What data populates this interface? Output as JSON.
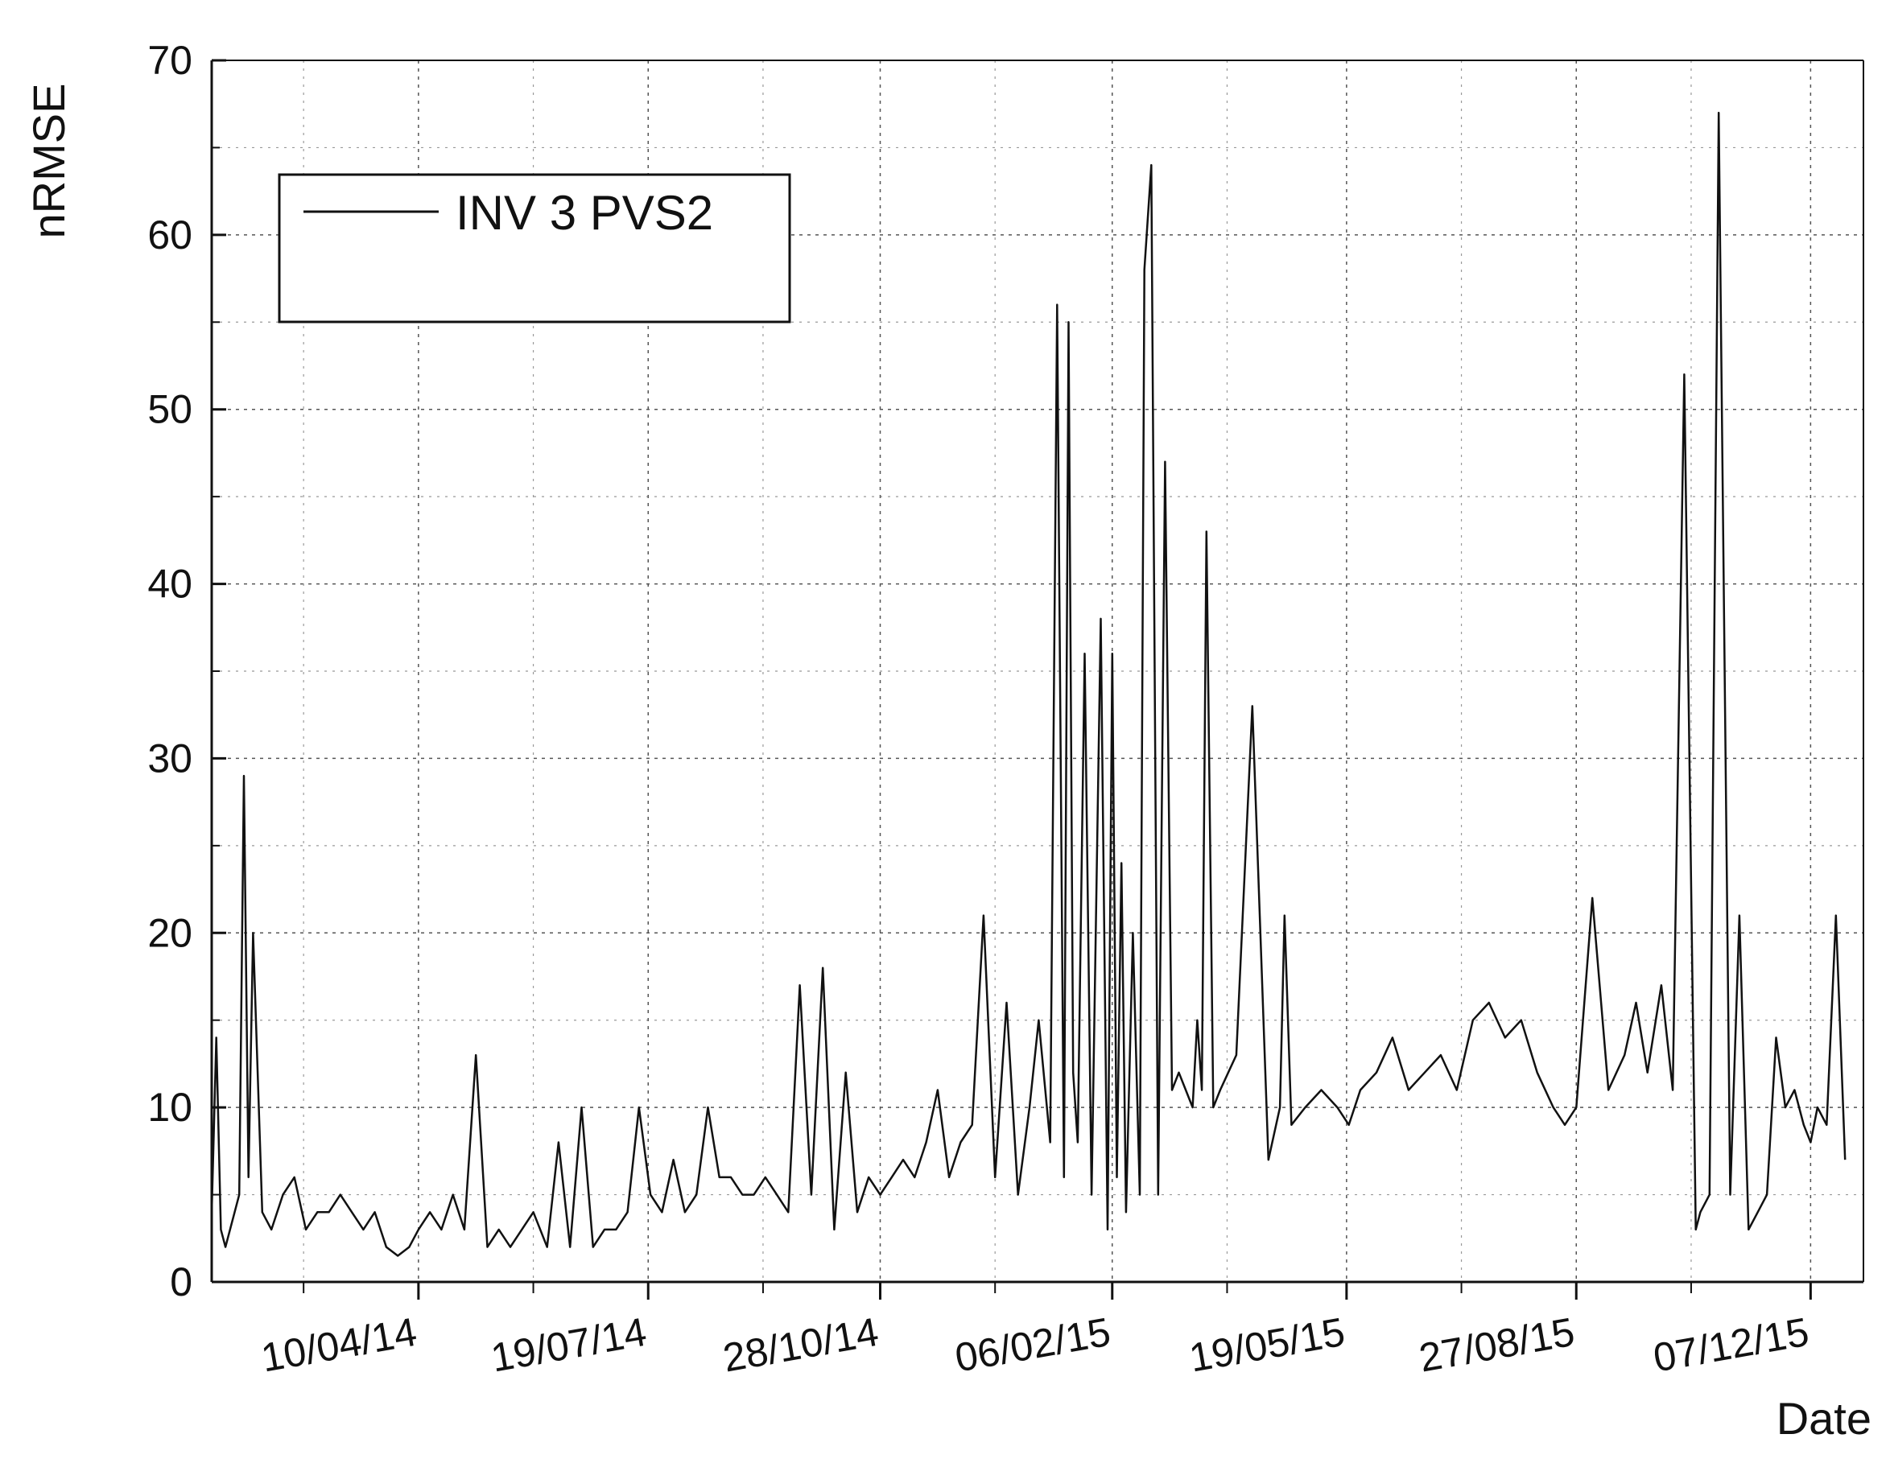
{
  "chart_data": {
    "type": "line",
    "title": "",
    "xlabel": "Date",
    "ylabel": "nRMSE",
    "ylim": [
      0,
      70
    ],
    "yticks": [
      0,
      10,
      20,
      30,
      40,
      50,
      60,
      70
    ],
    "xlim": [
      "2014-01-10",
      "2015-12-30"
    ],
    "xtick_labels": [
      "10/04/14",
      "19/07/14",
      "28/10/14",
      "06/02/15",
      "19/05/15",
      "27/08/15",
      "07/12/15"
    ],
    "xtick_dates": [
      "2014-04-10",
      "2014-07-19",
      "2014-10-28",
      "2015-02-06",
      "2015-05-19",
      "2015-08-27",
      "2015-12-07"
    ],
    "grid": true,
    "legend": "top-left",
    "series": [
      {
        "name": "INV 3 PVS2",
        "color": "#111111",
        "x": [
          "2014-01-10",
          "2014-01-12",
          "2014-01-14",
          "2014-01-16",
          "2014-01-18",
          "2014-01-20",
          "2014-01-22",
          "2014-01-24",
          "2014-01-26",
          "2014-01-28",
          "2014-02-01",
          "2014-02-05",
          "2014-02-10",
          "2014-02-15",
          "2014-02-20",
          "2014-02-25",
          "2014-03-02",
          "2014-03-07",
          "2014-03-12",
          "2014-03-17",
          "2014-03-22",
          "2014-03-27",
          "2014-04-01",
          "2014-04-06",
          "2014-04-10",
          "2014-04-15",
          "2014-04-20",
          "2014-04-25",
          "2014-04-30",
          "2014-05-05",
          "2014-05-10",
          "2014-05-15",
          "2014-05-20",
          "2014-05-25",
          "2014-05-30",
          "2014-06-05",
          "2014-06-10",
          "2014-06-15",
          "2014-06-20",
          "2014-06-25",
          "2014-06-30",
          "2014-07-05",
          "2014-07-10",
          "2014-07-15",
          "2014-07-20",
          "2014-07-25",
          "2014-07-30",
          "2014-08-04",
          "2014-08-09",
          "2014-08-14",
          "2014-08-19",
          "2014-08-24",
          "2014-08-29",
          "2014-09-03",
          "2014-09-08",
          "2014-09-13",
          "2014-09-18",
          "2014-09-23",
          "2014-09-28",
          "2014-10-03",
          "2014-10-08",
          "2014-10-13",
          "2014-10-18",
          "2014-10-23",
          "2014-10-28",
          "2014-11-02",
          "2014-11-07",
          "2014-11-12",
          "2014-11-17",
          "2014-11-22",
          "2014-11-27",
          "2014-12-02",
          "2014-12-07",
          "2014-12-12",
          "2014-12-17",
          "2014-12-22",
          "2014-12-27",
          "2015-01-01",
          "2015-01-05",
          "2015-01-10",
          "2015-01-13",
          "2015-01-16",
          "2015-01-18",
          "2015-01-20",
          "2015-01-22",
          "2015-01-25",
          "2015-01-28",
          "2015-02-01",
          "2015-02-04",
          "2015-02-06",
          "2015-02-08",
          "2015-02-10",
          "2015-02-12",
          "2015-02-15",
          "2015-02-18",
          "2015-02-20",
          "2015-02-23",
          "2015-02-26",
          "2015-03-01",
          "2015-03-04",
          "2015-03-07",
          "2015-03-10",
          "2015-03-13",
          "2015-03-15",
          "2015-03-17",
          "2015-03-19",
          "2015-03-22",
          "2015-03-25",
          "2015-04-01",
          "2015-04-08",
          "2015-04-15",
          "2015-04-20",
          "2015-04-22",
          "2015-04-25",
          "2015-05-01",
          "2015-05-08",
          "2015-05-15",
          "2015-05-20",
          "2015-05-25",
          "2015-06-01",
          "2015-06-08",
          "2015-06-15",
          "2015-06-22",
          "2015-06-29",
          "2015-07-06",
          "2015-07-13",
          "2015-07-20",
          "2015-07-27",
          "2015-08-03",
          "2015-08-10",
          "2015-08-17",
          "2015-08-22",
          "2015-08-27",
          "2015-09-03",
          "2015-09-10",
          "2015-09-17",
          "2015-09-22",
          "2015-09-27",
          "2015-10-03",
          "2015-10-08",
          "2015-10-13",
          "2015-10-18",
          "2015-10-20",
          "2015-10-24",
          "2015-10-28",
          "2015-11-02",
          "2015-11-06",
          "2015-11-10",
          "2015-11-14",
          "2015-11-18",
          "2015-11-22",
          "2015-11-26",
          "2015-11-30",
          "2015-12-04",
          "2015-12-07",
          "2015-12-10",
          "2015-12-14",
          "2015-12-18",
          "2015-12-22"
        ],
        "y": [
          4,
          14,
          3,
          2,
          3,
          4,
          5,
          29,
          6,
          20,
          4,
          3,
          5,
          6,
          3,
          4,
          4,
          5,
          4,
          3,
          4,
          2,
          1.5,
          2,
          3,
          4,
          3,
          5,
          3,
          13,
          2,
          3,
          2,
          3,
          4,
          2,
          8,
          2,
          10,
          2,
          3,
          3,
          4,
          10,
          5,
          4,
          7,
          4,
          5,
          10,
          6,
          6,
          5,
          5,
          6,
          5,
          4,
          17,
          5,
          18,
          3,
          12,
          4,
          6,
          5,
          6,
          7,
          6,
          8,
          11,
          6,
          8,
          9,
          21,
          6,
          16,
          5,
          10,
          15,
          8,
          56,
          6,
          55,
          12,
          8,
          36,
          5,
          38,
          3,
          36,
          6,
          24,
          4,
          20,
          5,
          58,
          64,
          5,
          47,
          11,
          12,
          11,
          10,
          15,
          11,
          43,
          10,
          11,
          13,
          33,
          7,
          10,
          21,
          9,
          10,
          11,
          10,
          9,
          11,
          12,
          14,
          11,
          12,
          13,
          11,
          15,
          16,
          14,
          15,
          12,
          10,
          9,
          10,
          22,
          11,
          13,
          16,
          12,
          17,
          11,
          52,
          3,
          4,
          5,
          67,
          5,
          21,
          3,
          4,
          5,
          14,
          10,
          11,
          9,
          8,
          10,
          9,
          21,
          7
        ]
      }
    ]
  }
}
